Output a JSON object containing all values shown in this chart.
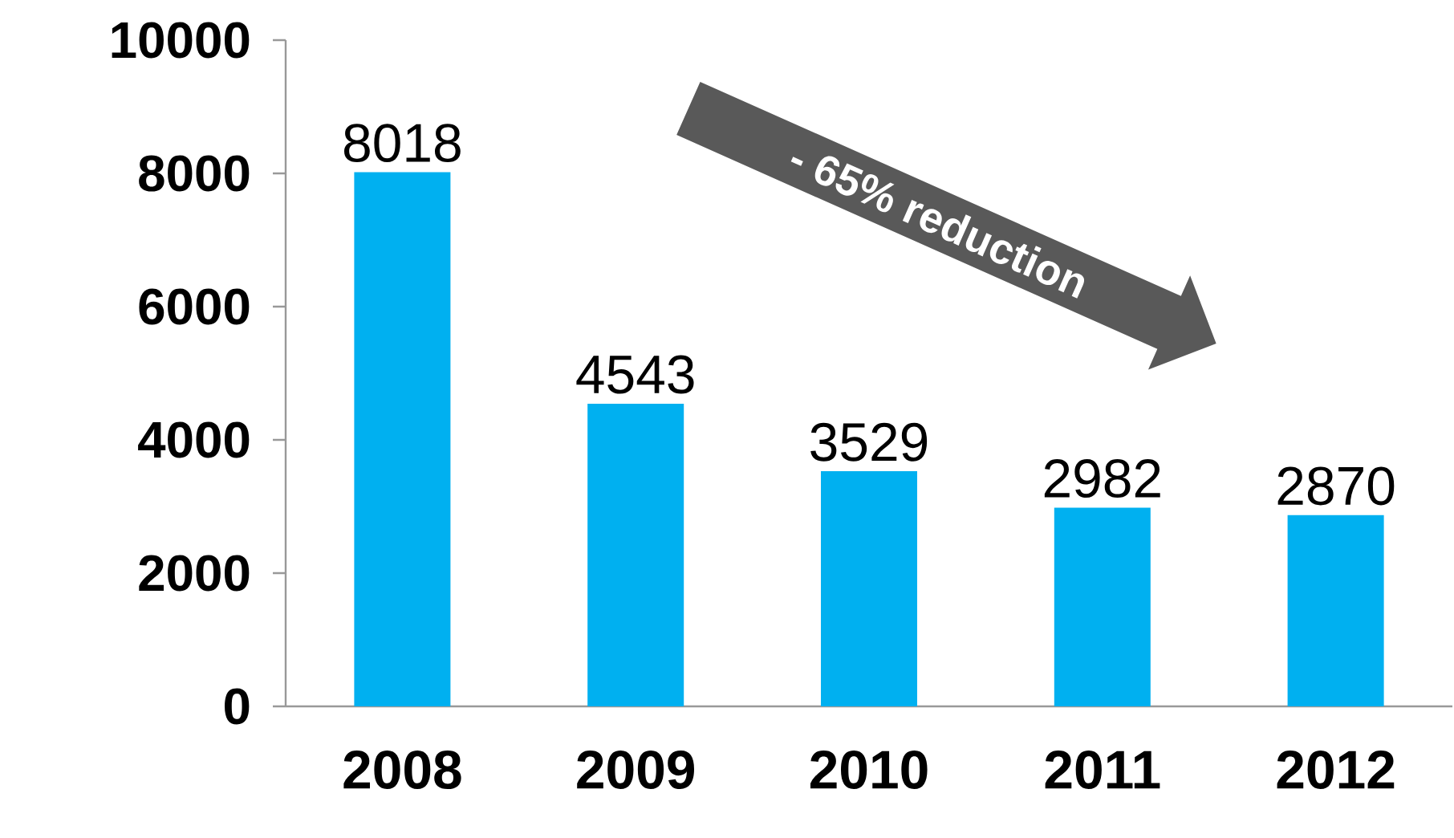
{
  "chart_data": {
    "type": "bar",
    "categories": [
      "2008",
      "2009",
      "2010",
      "2011",
      "2012"
    ],
    "values": [
      8018,
      4543,
      3529,
      2982,
      2870
    ],
    "color": "#00b0f0",
    "ylim": [
      0,
      10000
    ],
    "yticks": [
      0,
      2000,
      4000,
      6000,
      8000,
      10000
    ],
    "data_labels": true,
    "annotations": [
      "- 65% reduction"
    ]
  }
}
